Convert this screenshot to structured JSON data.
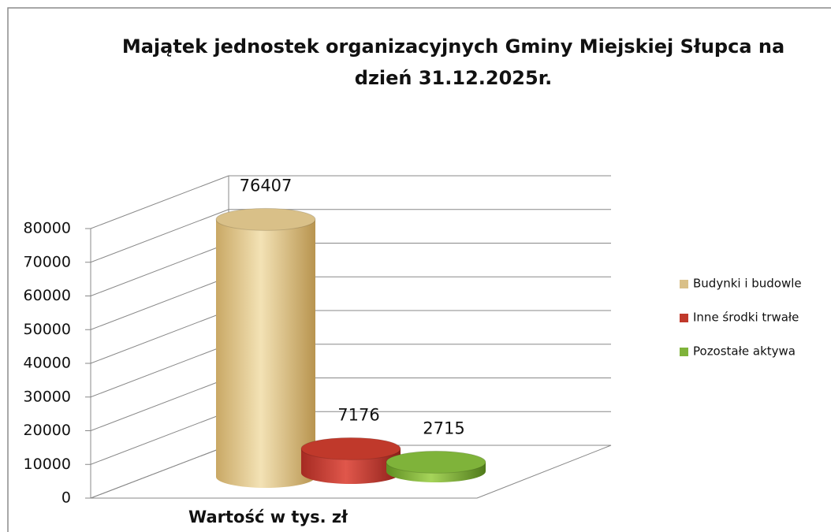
{
  "chart_data": {
    "type": "bar",
    "title": "Majątek jednostek organizacyjnych Gminy Miejskiej Słupca na dzień  31.12.2025r.",
    "categories": [
      "Wartość w tys. zł"
    ],
    "series": [
      {
        "name": "Budynki i budowle",
        "color": "#d9c088",
        "values": [
          76407
        ]
      },
      {
        "name": "Inne środki trwałe",
        "color": "#c0392b",
        "values": [
          7176
        ]
      },
      {
        "name": "Pozostałe aktywa",
        "color": "#7fb33a",
        "values": [
          2715
        ]
      }
    ],
    "ylim": [
      0,
      80000
    ],
    "yticks": [
      0,
      10000,
      20000,
      30000,
      40000,
      50000,
      60000,
      70000,
      80000
    ],
    "grid": true,
    "legend": "right"
  }
}
